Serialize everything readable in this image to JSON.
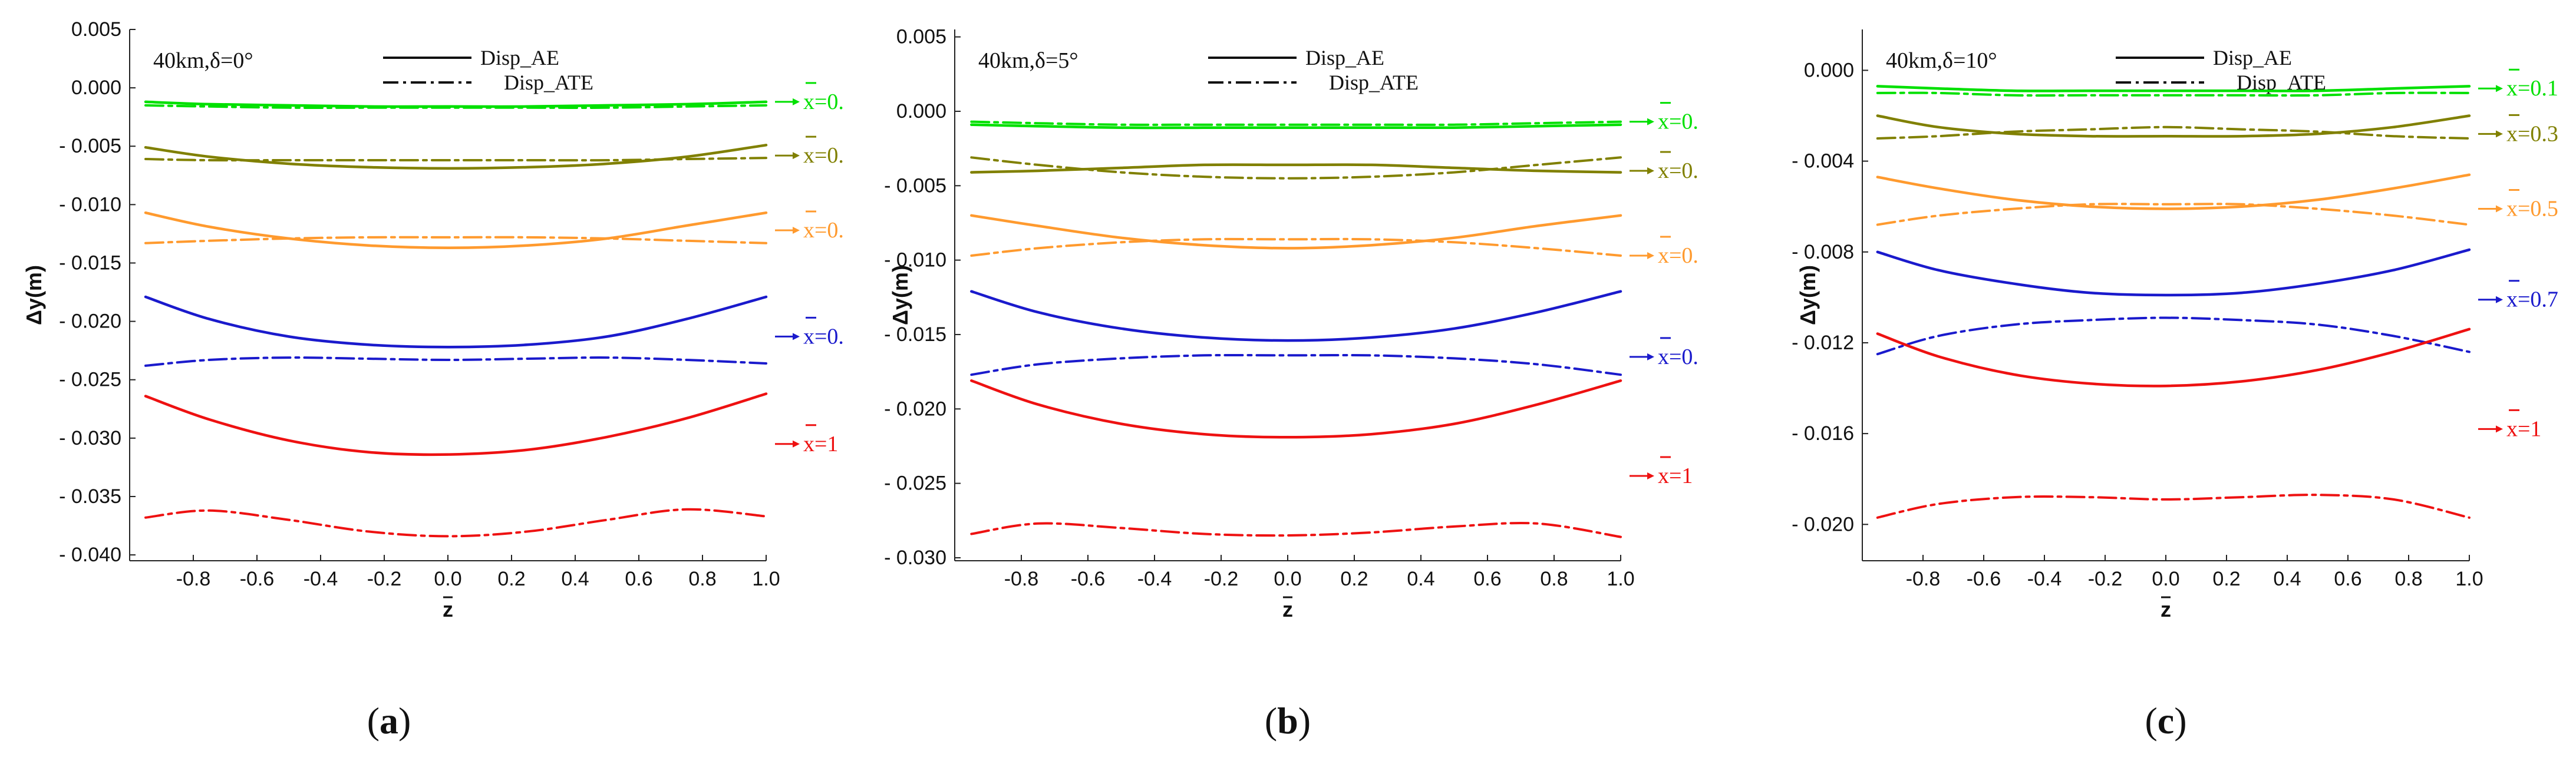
{
  "figure": {
    "panels": [
      {
        "id": "a",
        "caption_letter": "a"
      },
      {
        "id": "b",
        "caption_letter": "b"
      },
      {
        "id": "c",
        "caption_letter": "c"
      }
    ]
  },
  "chart_data": [
    {
      "type": "line",
      "panel": "a",
      "title": "40km,δ=0°",
      "xlabel": "z",
      "ylabel": "Δy(m)",
      "xlim": [
        -1.0,
        1.0
      ],
      "ylim": [
        -0.0405,
        0.005
      ],
      "xticks": [
        -0.8,
        -0.6,
        -0.4,
        -0.2,
        0.0,
        0.2,
        0.4,
        0.6,
        0.8,
        1.0
      ],
      "xtick_labels": [
        "-0.8",
        "-0.6",
        "-0.4",
        "-0.2",
        "0.0",
        "0.2",
        "0.4",
        "0.6",
        "0.8",
        "1.0"
      ],
      "yticks": [
        0.005,
        0.0,
        -0.005,
        -0.01,
        -0.015,
        -0.02,
        -0.025,
        -0.03,
        -0.035,
        -0.04
      ],
      "ytick_labels": [
        "0.005",
        "0.000",
        "- 0.005",
        "- 0.010",
        "- 0.015",
        "- 0.020",
        "- 0.025",
        "- 0.030",
        "- 0.035",
        "- 0.040"
      ],
      "legend": [
        {
          "label": "Disp_AE",
          "style": "solid"
        },
        {
          "label": "Disp_ATE",
          "style": "dashdot"
        }
      ],
      "x": [
        -0.95,
        -0.75,
        -0.5,
        -0.25,
        0.0,
        0.25,
        0.5,
        0.75,
        1.0
      ],
      "series": [
        {
          "name": "x=0.",
          "color": "#00e000",
          "style": "solid",
          "values": [
            -0.0012,
            -0.0014,
            -0.0015,
            -0.0016,
            -0.0016,
            -0.0016,
            -0.0015,
            -0.0014,
            -0.0012
          ]
        },
        {
          "name": "x=0.",
          "color": "#00e000",
          "style": "dashdot",
          "values": [
            -0.0015,
            -0.0016,
            -0.0017,
            -0.0017,
            -0.0017,
            -0.0017,
            -0.0017,
            -0.0016,
            -0.0015
          ]
        },
        {
          "name": "x=0.",
          "color": "#808000",
          "style": "solid",
          "values": [
            -0.0051,
            -0.0059,
            -0.0065,
            -0.0068,
            -0.0069,
            -0.0068,
            -0.0065,
            -0.0059,
            -0.0049
          ]
        },
        {
          "name": "x=0.",
          "color": "#808000",
          "style": "dashdot",
          "values": [
            -0.0061,
            -0.0062,
            -0.0062,
            -0.0062,
            -0.0062,
            -0.0062,
            -0.0062,
            -0.0061,
            -0.006
          ]
        },
        {
          "name": "x=0.",
          "color": "#ff9a2e",
          "style": "solid",
          "values": [
            -0.0107,
            -0.0119,
            -0.0129,
            -0.0135,
            -0.0137,
            -0.0135,
            -0.0129,
            -0.0118,
            -0.0107
          ]
        },
        {
          "name": "x=0.",
          "color": "#ff9a2e",
          "style": "dashdot",
          "values": [
            -0.0133,
            -0.0131,
            -0.0129,
            -0.0128,
            -0.0128,
            -0.0128,
            -0.0129,
            -0.0131,
            -0.0133
          ]
        },
        {
          "name": "x=0.",
          "color": "#1a1acc",
          "style": "solid",
          "values": [
            -0.0179,
            -0.0198,
            -0.0213,
            -0.022,
            -0.0222,
            -0.022,
            -0.0213,
            -0.0198,
            -0.0179
          ]
        },
        {
          "name": "x=0.",
          "color": "#1a1acc",
          "style": "dashdot",
          "values": [
            -0.0238,
            -0.0233,
            -0.0231,
            -0.0232,
            -0.0233,
            -0.0232,
            -0.0231,
            -0.0233,
            -0.0236
          ]
        },
        {
          "name": "x=1",
          "color": "#ee1111",
          "style": "solid",
          "values": [
            -0.0264,
            -0.0284,
            -0.0302,
            -0.0312,
            -0.0314,
            -0.031,
            -0.0299,
            -0.0283,
            -0.0262
          ]
        },
        {
          "name": "x=1",
          "color": "#ee1111",
          "style": "dashdot",
          "values": [
            -0.0368,
            -0.0362,
            -0.037,
            -0.038,
            -0.0384,
            -0.038,
            -0.037,
            -0.0361,
            -0.0367
          ]
        }
      ],
      "annotations": [
        {
          "text": "x=0.",
          "color": "#00e000",
          "value": -0.0012
        },
        {
          "text": "x=0.",
          "color": "#808000",
          "value": -0.0058
        },
        {
          "text": "x=0.",
          "color": "#ff9a2e",
          "value": -0.0122
        },
        {
          "text": "x=0.",
          "color": "#1a1acc",
          "value": -0.0213
        },
        {
          "text": "x=1",
          "color": "#ee1111",
          "value": -0.0305
        }
      ]
    },
    {
      "type": "line",
      "panel": "b",
      "title": "40km,δ=5°",
      "xlabel": "z",
      "ylabel": "Δy(m)",
      "xlim": [
        -1.0,
        1.0
      ],
      "ylim": [
        -0.0302,
        0.0055
      ],
      "xticks": [
        -0.8,
        -0.6,
        -0.4,
        -0.2,
        0.0,
        0.2,
        0.4,
        0.6,
        0.8,
        1.0
      ],
      "xtick_labels": [
        "-0.8",
        "-0.6",
        "-0.4",
        "-0.2",
        "0.0",
        "0.2",
        "0.4",
        "0.6",
        "0.8",
        "1.0"
      ],
      "yticks": [
        0.005,
        0.0,
        -0.005,
        -0.01,
        -0.015,
        -0.02,
        -0.025,
        -0.03
      ],
      "ytick_labels": [
        "0.005",
        "0.000",
        "- 0.005",
        "- 0.010",
        "- 0.015",
        "- 0.020",
        "- 0.025",
        "- 0.030"
      ],
      "legend": [
        {
          "label": "Disp_AE",
          "style": "solid"
        },
        {
          "label": "Disp_ATE",
          "style": "dashdot"
        }
      ],
      "x": [
        -0.95,
        -0.75,
        -0.5,
        -0.25,
        0.0,
        0.25,
        0.5,
        0.75,
        1.0
      ],
      "series": [
        {
          "name": "x=0.",
          "color": "#00e000",
          "style": "solid",
          "values": [
            -0.0009,
            -0.001,
            -0.0011,
            -0.0011,
            -0.0011,
            -0.0011,
            -0.0011,
            -0.001,
            -0.0009
          ]
        },
        {
          "name": "x=0.",
          "color": "#00e000",
          "style": "dashdot",
          "values": [
            -0.0007,
            -0.0008,
            -0.0009,
            -0.0009,
            -0.0009,
            -0.0009,
            -0.0009,
            -0.0008,
            -0.0007
          ]
        },
        {
          "name": "x=0.",
          "color": "#808000",
          "style": "solid",
          "values": [
            -0.0041,
            -0.004,
            -0.0038,
            -0.0036,
            -0.0036,
            -0.0036,
            -0.0038,
            -0.004,
            -0.0041
          ]
        },
        {
          "name": "x=0.",
          "color": "#808000",
          "style": "dashdot",
          "values": [
            -0.0031,
            -0.0036,
            -0.0041,
            -0.0044,
            -0.0045,
            -0.0044,
            -0.0041,
            -0.0036,
            -0.0031
          ]
        },
        {
          "name": "x=0.",
          "color": "#ff9a2e",
          "style": "solid",
          "values": [
            -0.007,
            -0.0077,
            -0.0085,
            -0.009,
            -0.0092,
            -0.009,
            -0.0085,
            -0.0077,
            -0.007
          ]
        },
        {
          "name": "x=0.",
          "color": "#ff9a2e",
          "style": "dashdot",
          "values": [
            -0.0097,
            -0.0092,
            -0.0088,
            -0.0086,
            -0.0086,
            -0.0086,
            -0.0088,
            -0.0092,
            -0.0097
          ]
        },
        {
          "name": "x=0.",
          "color": "#1a1acc",
          "style": "solid",
          "values": [
            -0.0121,
            -0.0135,
            -0.0146,
            -0.0152,
            -0.0154,
            -0.0152,
            -0.0146,
            -0.0135,
            -0.0121
          ]
        },
        {
          "name": "x=0.",
          "color": "#1a1acc",
          "style": "dashdot",
          "values": [
            -0.0177,
            -0.017,
            -0.0166,
            -0.0164,
            -0.0164,
            -0.0164,
            -0.0166,
            -0.017,
            -0.0177
          ]
        },
        {
          "name": "x=1",
          "color": "#ee1111",
          "style": "solid",
          "values": [
            -0.0181,
            -0.0197,
            -0.021,
            -0.0217,
            -0.0219,
            -0.0217,
            -0.021,
            -0.0197,
            -0.0181
          ]
        },
        {
          "name": "x=1",
          "color": "#ee1111",
          "style": "dashdot",
          "values": [
            -0.0284,
            -0.0277,
            -0.028,
            -0.0284,
            -0.0285,
            -0.0283,
            -0.0279,
            -0.0277,
            -0.0286
          ]
        }
      ],
      "annotations": [
        {
          "text": "x=0.",
          "color": "#00e000",
          "value": -0.0007
        },
        {
          "text": "x=0.",
          "color": "#808000",
          "value": -0.004
        },
        {
          "text": "x=0.",
          "color": "#ff9a2e",
          "value": -0.0097
        },
        {
          "text": "x=0.",
          "color": "#1a1acc",
          "value": -0.0165
        },
        {
          "text": "x=1",
          "color": "#ee1111",
          "value": -0.0245
        }
      ]
    },
    {
      "type": "line",
      "panel": "c",
      "title": "40km,δ=10°",
      "xlabel": "z",
      "ylabel": "Δy(m)",
      "xlim": [
        -1.0,
        1.0
      ],
      "ylim": [
        -0.0216,
        0.0018
      ],
      "xticks": [
        -0.8,
        -0.6,
        -0.4,
        -0.2,
        0.0,
        0.2,
        0.4,
        0.6,
        0.8,
        1.0
      ],
      "xtick_labels": [
        "-0.8",
        "-0.6",
        "-0.4",
        "-0.2",
        "0.0",
        "0.2",
        "0.4",
        "0.6",
        "0.8",
        "1.0"
      ],
      "yticks": [
        0.0,
        -0.004,
        -0.008,
        -0.012,
        -0.016,
        -0.02
      ],
      "ytick_labels": [
        "0.000",
        "- 0.004",
        "- 0.008",
        "- 0.012",
        "- 0.016",
        "- 0.020"
      ],
      "legend": [
        {
          "label": "Disp_AE",
          "style": "solid"
        },
        {
          "label": "Disp_ATE",
          "style": "dashdot"
        }
      ],
      "x": [
        -0.95,
        -0.75,
        -0.5,
        -0.25,
        0.0,
        0.25,
        0.5,
        0.75,
        1.0
      ],
      "series": [
        {
          "name": "x=0.1",
          "color": "#00e000",
          "style": "solid",
          "values": [
            -0.0007,
            -0.0008,
            -0.0009,
            -0.0009,
            -0.0009,
            -0.0009,
            -0.0009,
            -0.0008,
            -0.0007
          ]
        },
        {
          "name": "x=0.1",
          "color": "#00e000",
          "style": "dashdot",
          "values": [
            -0.001,
            -0.001,
            -0.0011,
            -0.0011,
            -0.0011,
            -0.0011,
            -0.0011,
            -0.001,
            -0.001
          ]
        },
        {
          "name": "x=0.3",
          "color": "#808000",
          "style": "solid",
          "values": [
            -0.002,
            -0.0025,
            -0.0028,
            -0.0029,
            -0.0029,
            -0.0029,
            -0.0028,
            -0.0025,
            -0.002
          ]
        },
        {
          "name": "x=0.3",
          "color": "#808000",
          "style": "dashdot",
          "values": [
            -0.003,
            -0.0029,
            -0.0027,
            -0.0026,
            -0.0025,
            -0.0026,
            -0.0027,
            -0.0029,
            -0.003
          ]
        },
        {
          "name": "x=0.5",
          "color": "#ff9a2e",
          "style": "solid",
          "values": [
            -0.0047,
            -0.0052,
            -0.0057,
            -0.006,
            -0.0061,
            -0.006,
            -0.0057,
            -0.0052,
            -0.0046
          ]
        },
        {
          "name": "x=0.5",
          "color": "#ff9a2e",
          "style": "dashdot",
          "values": [
            -0.0068,
            -0.0064,
            -0.0061,
            -0.0059,
            -0.0059,
            -0.0059,
            -0.0061,
            -0.0064,
            -0.0068
          ]
        },
        {
          "name": "x=0.7",
          "color": "#1a1acc",
          "style": "solid",
          "values": [
            -0.008,
            -0.0088,
            -0.0094,
            -0.0098,
            -0.0099,
            -0.0098,
            -0.0094,
            -0.0088,
            -0.0079
          ]
        },
        {
          "name": "x=0.7",
          "color": "#1a1acc",
          "style": "dashdot",
          "values": [
            -0.0125,
            -0.0117,
            -0.0112,
            -0.011,
            -0.0109,
            -0.011,
            -0.0112,
            -0.0117,
            -0.0124
          ]
        },
        {
          "name": "x=1",
          "color": "#ee1111",
          "style": "solid",
          "values": [
            -0.0116,
            -0.0126,
            -0.0134,
            -0.0138,
            -0.0139,
            -0.0137,
            -0.0132,
            -0.0124,
            -0.0114
          ]
        },
        {
          "name": "x=1",
          "color": "#ee1111",
          "style": "dashdot",
          "values": [
            -0.0197,
            -0.0191,
            -0.0188,
            -0.0188,
            -0.0189,
            -0.0188,
            -0.0187,
            -0.0189,
            -0.0197
          ]
        }
      ],
      "annotations": [
        {
          "text": "x=0.1",
          "color": "#00e000",
          "value": -0.0008
        },
        {
          "text": "x=0.3",
          "color": "#808000",
          "value": -0.0028
        },
        {
          "text": "x=0.5",
          "color": "#ff9a2e",
          "value": -0.0061
        },
        {
          "text": "x=0.7",
          "color": "#1a1acc",
          "value": -0.0101
        },
        {
          "text": "x=1",
          "color": "#ee1111",
          "value": -0.0158
        }
      ]
    }
  ]
}
